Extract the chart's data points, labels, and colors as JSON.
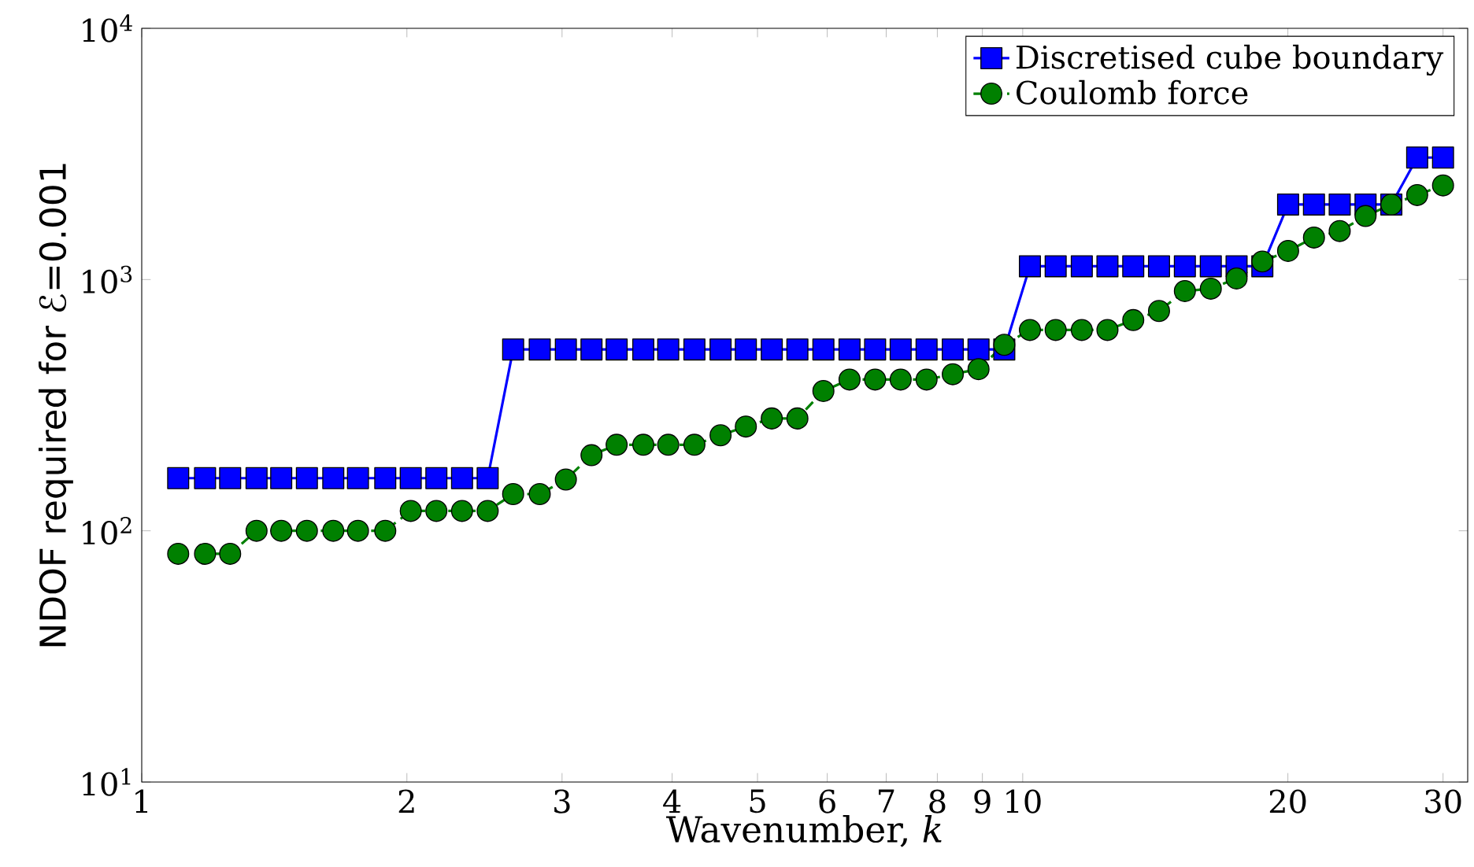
{
  "chart_data": {
    "type": "line",
    "xlabel": "Wavenumber, *k*",
    "ylabel": "NDOF required for ℰ=0.001",
    "log": "xy",
    "legend": "top right",
    "grid": false,
    "xlim": [
      1,
      32
    ],
    "ylim": [
      10,
      10000
    ],
    "xticks": [
      1,
      2,
      3,
      4,
      5,
      6,
      7,
      8,
      9,
      10,
      20,
      30
    ],
    "yticks": [
      {
        "value": 10,
        "label": "10$^{1}$"
      },
      {
        "value": 100,
        "label": "10$^{2}$"
      },
      {
        "value": 1000,
        "label": "10$^{3}$"
      },
      {
        "value": 10000,
        "label": "10$^{4}$"
      }
    ],
    "x": [
      1.1,
      1.18,
      1.26,
      1.35,
      1.44,
      1.54,
      1.65,
      1.76,
      1.89,
      2.02,
      2.16,
      2.31,
      2.47,
      2.64,
      2.83,
      3.03,
      3.24,
      3.46,
      3.71,
      3.96,
      4.24,
      4.54,
      4.85,
      5.19,
      5.55,
      5.94,
      6.36,
      6.8,
      7.27,
      7.78,
      8.33,
      8.91,
      9.53,
      10.19,
      10.9,
      11.67,
      12.48,
      13.35,
      14.28,
      15.28,
      16.35,
      17.49,
      18.71,
      20.01,
      21.41,
      22.9,
      24.5,
      26.21,
      28.04,
      30.0
    ],
    "series": [
      {
        "name": "Discretised cube boundary",
        "color": "#0000ff",
        "marker": "square",
        "line_style": "solid",
        "values": [
          162,
          162,
          162,
          162,
          162,
          162,
          162,
          162,
          162,
          162,
          162,
          162,
          162,
          527,
          527,
          527,
          527,
          527,
          527,
          527,
          527,
          527,
          527,
          527,
          527,
          527,
          527,
          527,
          527,
          527,
          527,
          527,
          527,
          1130,
          1130,
          1130,
          1130,
          1130,
          1130,
          1130,
          1130,
          1130,
          1130,
          1990,
          1990,
          1990,
          1990,
          1990,
          3060,
          3060
        ]
      },
      {
        "name": "Coulomb force",
        "color": "#008000",
        "marker": "circle",
        "line_style": "dashed",
        "values": [
          81,
          81,
          81,
          100,
          100,
          100,
          100,
          100,
          100,
          120,
          120,
          120,
          120,
          140,
          140,
          160,
          200,
          220,
          220,
          220,
          220,
          240,
          260,
          280,
          280,
          360,
          400,
          400,
          400,
          400,
          420,
          440,
          550,
          630,
          630,
          630,
          630,
          690,
          750,
          900,
          920,
          1010,
          1180,
          1300,
          1470,
          1560,
          1790,
          1990,
          2170,
          2370
        ]
      }
    ]
  }
}
